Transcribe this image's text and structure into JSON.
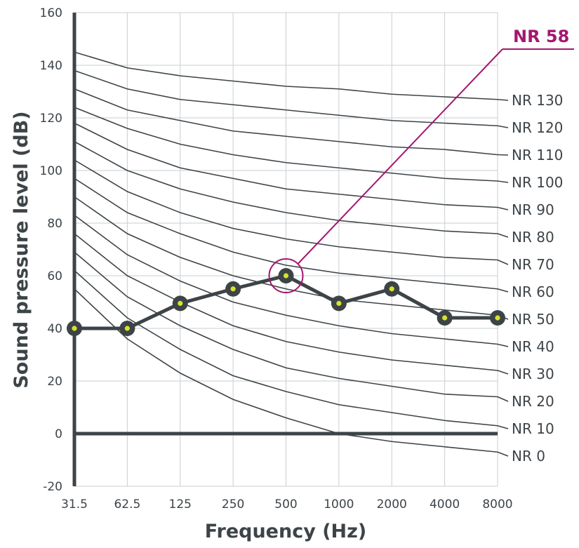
{
  "chart_data": {
    "type": "line",
    "title": "",
    "xlabel": "Frequency (Hz)",
    "ylabel": "Sound pressure level (dB)",
    "x_scale": "categorical",
    "categories": [
      "31.5",
      "62.5",
      "125",
      "250",
      "500",
      "1000",
      "2000",
      "4000",
      "8000"
    ],
    "ylim": [
      -20,
      160
    ],
    "yticks": [
      "160",
      "140",
      "120",
      "100",
      "80",
      "60",
      "40",
      "20",
      "0",
      "-20"
    ],
    "ytick_values": [
      160,
      140,
      120,
      100,
      80,
      60,
      40,
      20,
      0,
      -20
    ],
    "grid": true,
    "nr_curves": [
      {
        "name": "NR 130",
        "values": [
          145,
          139,
          136,
          134,
          132,
          131,
          129,
          128,
          127
        ]
      },
      {
        "name": "NR 120",
        "values": [
          138,
          131,
          127,
          125,
          123,
          121,
          119,
          118,
          117
        ]
      },
      {
        "name": "NR 110",
        "values": [
          131,
          123,
          119,
          115,
          113,
          111,
          109,
          108,
          106
        ]
      },
      {
        "name": "NR 100",
        "values": [
          124,
          116,
          110,
          106,
          103,
          101,
          99,
          97,
          96
        ]
      },
      {
        "name": "NR 90",
        "values": [
          118,
          108,
          101,
          97,
          93,
          91,
          89,
          87,
          86
        ]
      },
      {
        "name": "NR 80",
        "values": [
          111,
          100,
          93,
          88,
          84,
          81,
          79,
          77,
          76
        ]
      },
      {
        "name": "NR 70",
        "values": [
          104,
          92,
          84,
          78,
          74,
          71,
          69,
          67,
          66
        ]
      },
      {
        "name": "NR 60",
        "values": [
          97,
          84,
          76,
          69,
          64,
          61,
          59,
          57,
          55
        ]
      },
      {
        "name": "NR 50",
        "values": [
          90,
          76,
          67,
          60,
          55,
          51,
          49,
          47,
          45
        ]
      },
      {
        "name": "NR 40",
        "values": [
          83,
          68,
          58,
          50,
          45,
          41,
          38,
          36,
          34
        ]
      },
      {
        "name": "NR 30",
        "values": [
          76,
          60,
          50,
          41,
          35,
          31,
          28,
          26,
          24
        ]
      },
      {
        "name": "NR 20",
        "values": [
          69,
          52,
          41,
          32,
          25,
          21,
          18,
          15,
          14
        ]
      },
      {
        "name": "NR 10",
        "values": [
          62,
          44,
          32,
          22,
          16,
          11,
          8,
          5,
          3
        ]
      },
      {
        "name": "NR 0",
        "values": [
          55,
          36,
          23,
          13,
          6,
          0,
          -3,
          -5,
          -7
        ]
      }
    ],
    "measured": {
      "values": [
        40,
        40,
        49.5,
        55,
        60,
        49.5,
        55,
        44,
        44
      ]
    },
    "callout": {
      "label": "NR 58",
      "category": "500",
      "value": 60
    },
    "colors": {
      "curve": "#3d4448",
      "measured_line": "#3d4448",
      "marker_fill": "#3d4448",
      "marker_center": "#d8e32a",
      "grid": "#c9cdd1",
      "callout": "#a3176f"
    }
  }
}
